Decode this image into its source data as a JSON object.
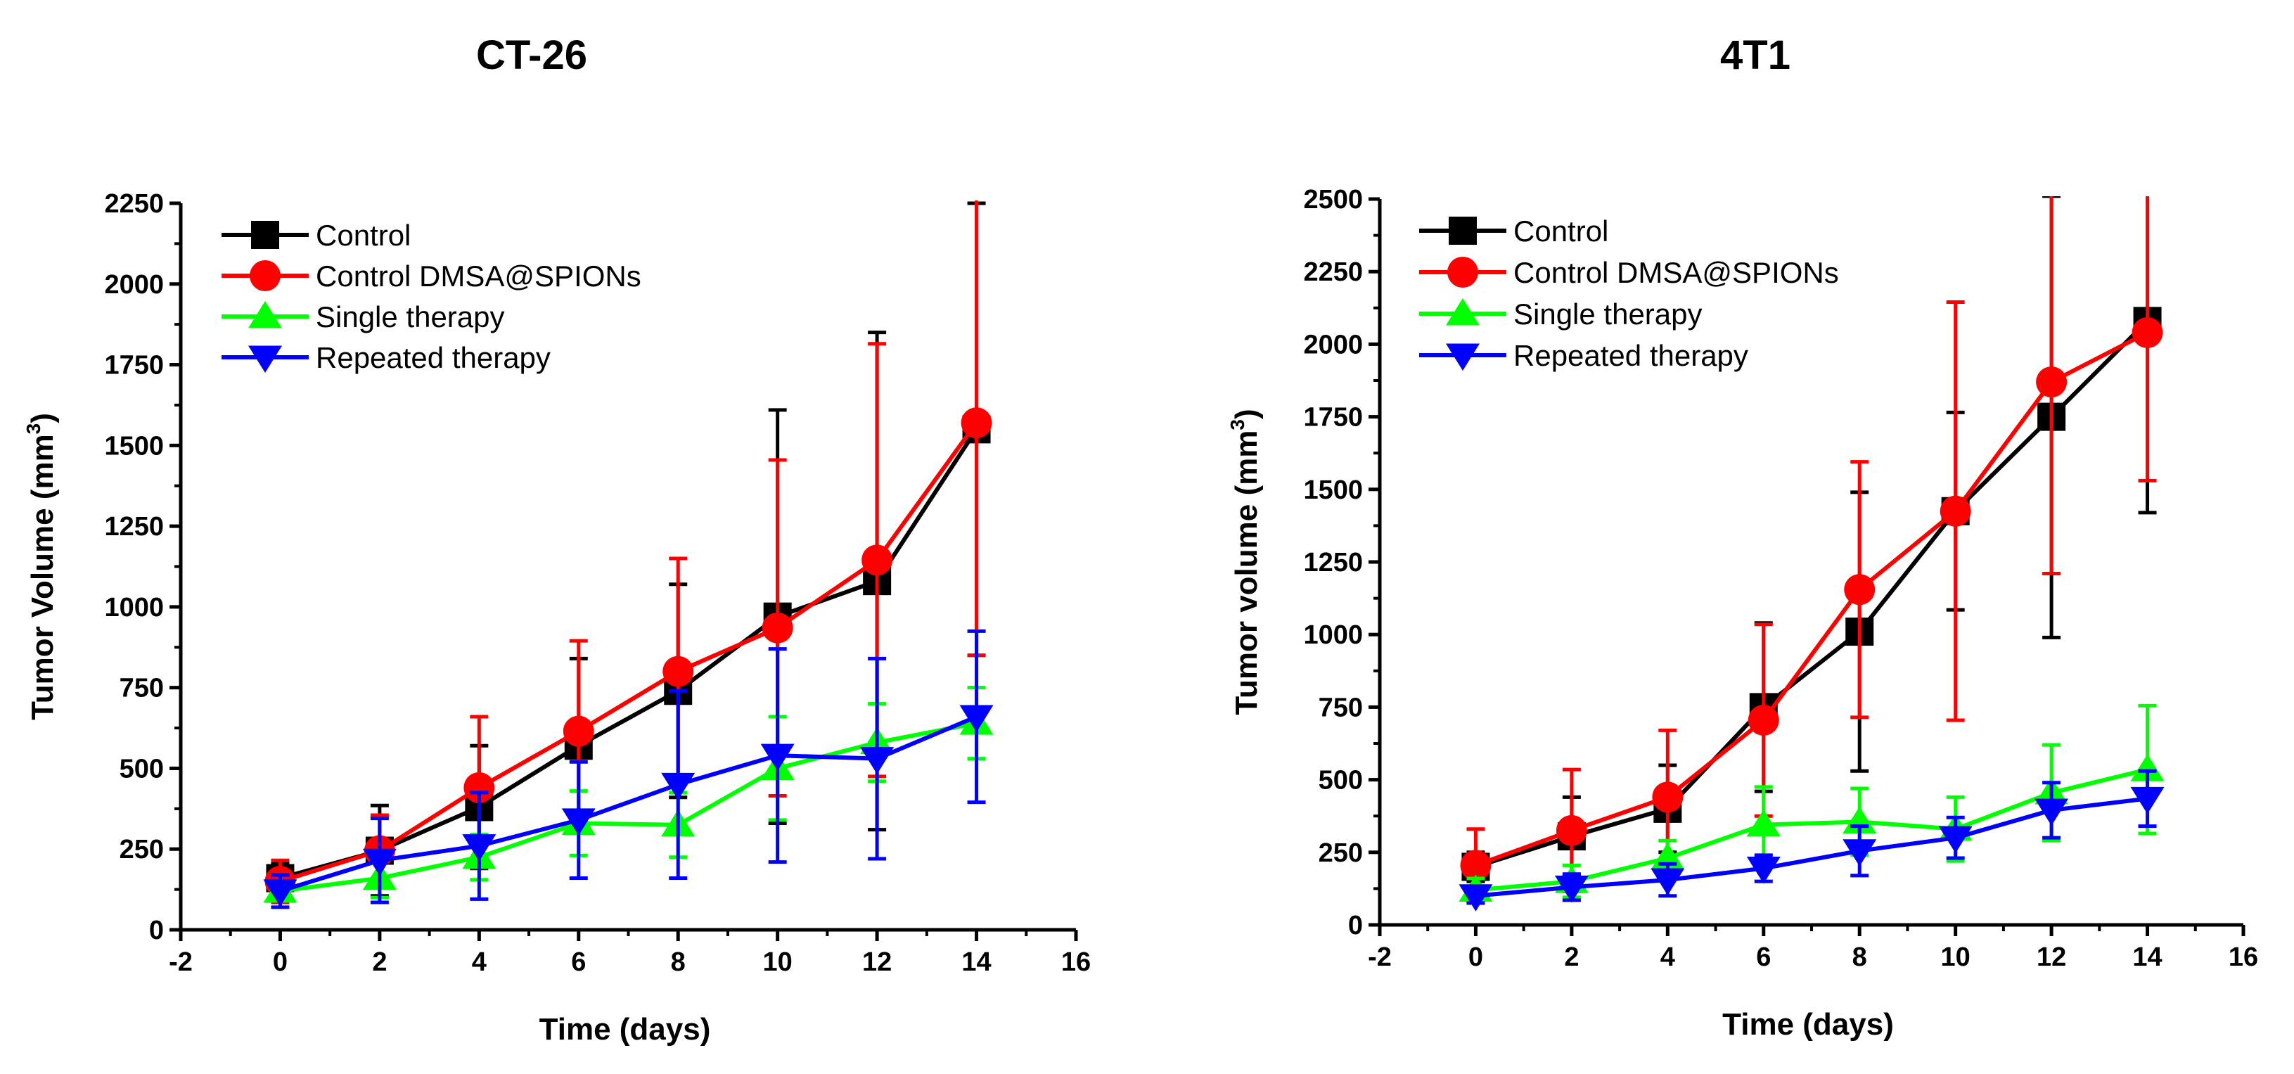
{
  "figure": {
    "panels": [
      "CT-26",
      "4T1"
    ]
  },
  "chart_data": [
    {
      "type": "line",
      "title": "CT-26",
      "xlabel": "Time (days)",
      "ylabel_main": "Tumor Volume (mm",
      "ylabel_sup": "3",
      "ylabel_close": ")",
      "xlim": [
        -2,
        16
      ],
      "ylim": [
        0,
        2250
      ],
      "xticks": [
        -2,
        0,
        2,
        4,
        6,
        8,
        10,
        12,
        14,
        16
      ],
      "xtick_labels": [
        "-2",
        "0",
        "2",
        "4",
        "6",
        "8",
        "10",
        "12",
        "14",
        "16"
      ],
      "yticks": [
        0,
        250,
        500,
        750,
        1000,
        1250,
        1500,
        1750,
        2000,
        2250
      ],
      "ytick_labels": [
        "0",
        "250",
        "500",
        "750",
        "1000",
        "1250",
        "1500",
        "1750",
        "2000",
        "2250"
      ],
      "x": [
        0,
        2,
        4,
        6,
        8,
        10,
        12,
        14
      ],
      "legend_position": "top-left",
      "series": [
        {
          "name": "Control",
          "color": "#000000",
          "marker": "square",
          "values": [
            160,
            245,
            380,
            570,
            740,
            970,
            1080,
            1550
          ],
          "errors": [
            45,
            140,
            190,
            270,
            330,
            640,
            770,
            700
          ]
        },
        {
          "name": "Control DMSA@SPIONs",
          "color": "#ff0000",
          "marker": "circle",
          "values": [
            150,
            245,
            440,
            615,
            800,
            935,
            1145,
            1570
          ],
          "errors": [
            65,
            110,
            220,
            280,
            350,
            520,
            670,
            720
          ]
        },
        {
          "name": "Single therapy",
          "color": "#00ff00",
          "marker": "triangle-up",
          "values": [
            120,
            160,
            225,
            330,
            325,
            500,
            580,
            640
          ],
          "errors": [
            30,
            60,
            70,
            100,
            100,
            160,
            120,
            110
          ]
        },
        {
          "name": "Repeated therapy",
          "color": "#0000ff",
          "marker": "triangle-down",
          "values": [
            120,
            215,
            260,
            340,
            450,
            540,
            530,
            660
          ],
          "errors": [
            50,
            130,
            165,
            180,
            290,
            330,
            310,
            265
          ]
        }
      ]
    },
    {
      "type": "line",
      "title": "4T1",
      "xlabel": "Time (days)",
      "ylabel_main": "Tumor volume (mm",
      "ylabel_sup": "3",
      "ylabel_close": ")",
      "xlim": [
        -2,
        16
      ],
      "ylim": [
        0,
        2500
      ],
      "xticks": [
        -2,
        0,
        2,
        4,
        6,
        8,
        10,
        12,
        14,
        16
      ],
      "xtick_labels": [
        "-2",
        "0",
        "2",
        "4",
        "6",
        "8",
        "10",
        "12",
        "14",
        "16"
      ],
      "yticks": [
        0,
        250,
        500,
        750,
        1000,
        1250,
        1500,
        1750,
        2000,
        2250,
        2500
      ],
      "ytick_labels": [
        "0",
        "250",
        "500",
        "750",
        "1000",
        "1250",
        "1500",
        "1750",
        "2000",
        "2250",
        "2500"
      ],
      "x": [
        0,
        2,
        4,
        6,
        8,
        10,
        12,
        14
      ],
      "legend_position": "top-left",
      "series": [
        {
          "name": "Control",
          "color": "#000000",
          "marker": "square",
          "values": [
            200,
            305,
            400,
            750,
            1010,
            1425,
            1750,
            2080
          ],
          "errors": [
            50,
            135,
            150,
            290,
            480,
            340,
            760,
            660
          ]
        },
        {
          "name": "Control DMSA@SPIONs",
          "color": "#ff0000",
          "marker": "circle",
          "values": [
            205,
            325,
            440,
            705,
            1155,
            1425,
            1870,
            2040
          ],
          "errors": [
            125,
            210,
            230,
            330,
            440,
            720,
            660,
            510
          ]
        },
        {
          "name": "Single therapy",
          "color": "#00ff00",
          "marker": "triangle-up",
          "values": [
            120,
            150,
            230,
            345,
            355,
            330,
            455,
            535
          ],
          "errors": [
            40,
            55,
            60,
            130,
            115,
            110,
            165,
            220
          ]
        },
        {
          "name": "Repeated therapy",
          "color": "#0000ff",
          "marker": "triangle-down",
          "values": [
            100,
            130,
            155,
            195,
            255,
            300,
            395,
            435
          ],
          "errors": [
            25,
            45,
            55,
            45,
            85,
            70,
            95,
            95
          ]
        }
      ]
    }
  ]
}
